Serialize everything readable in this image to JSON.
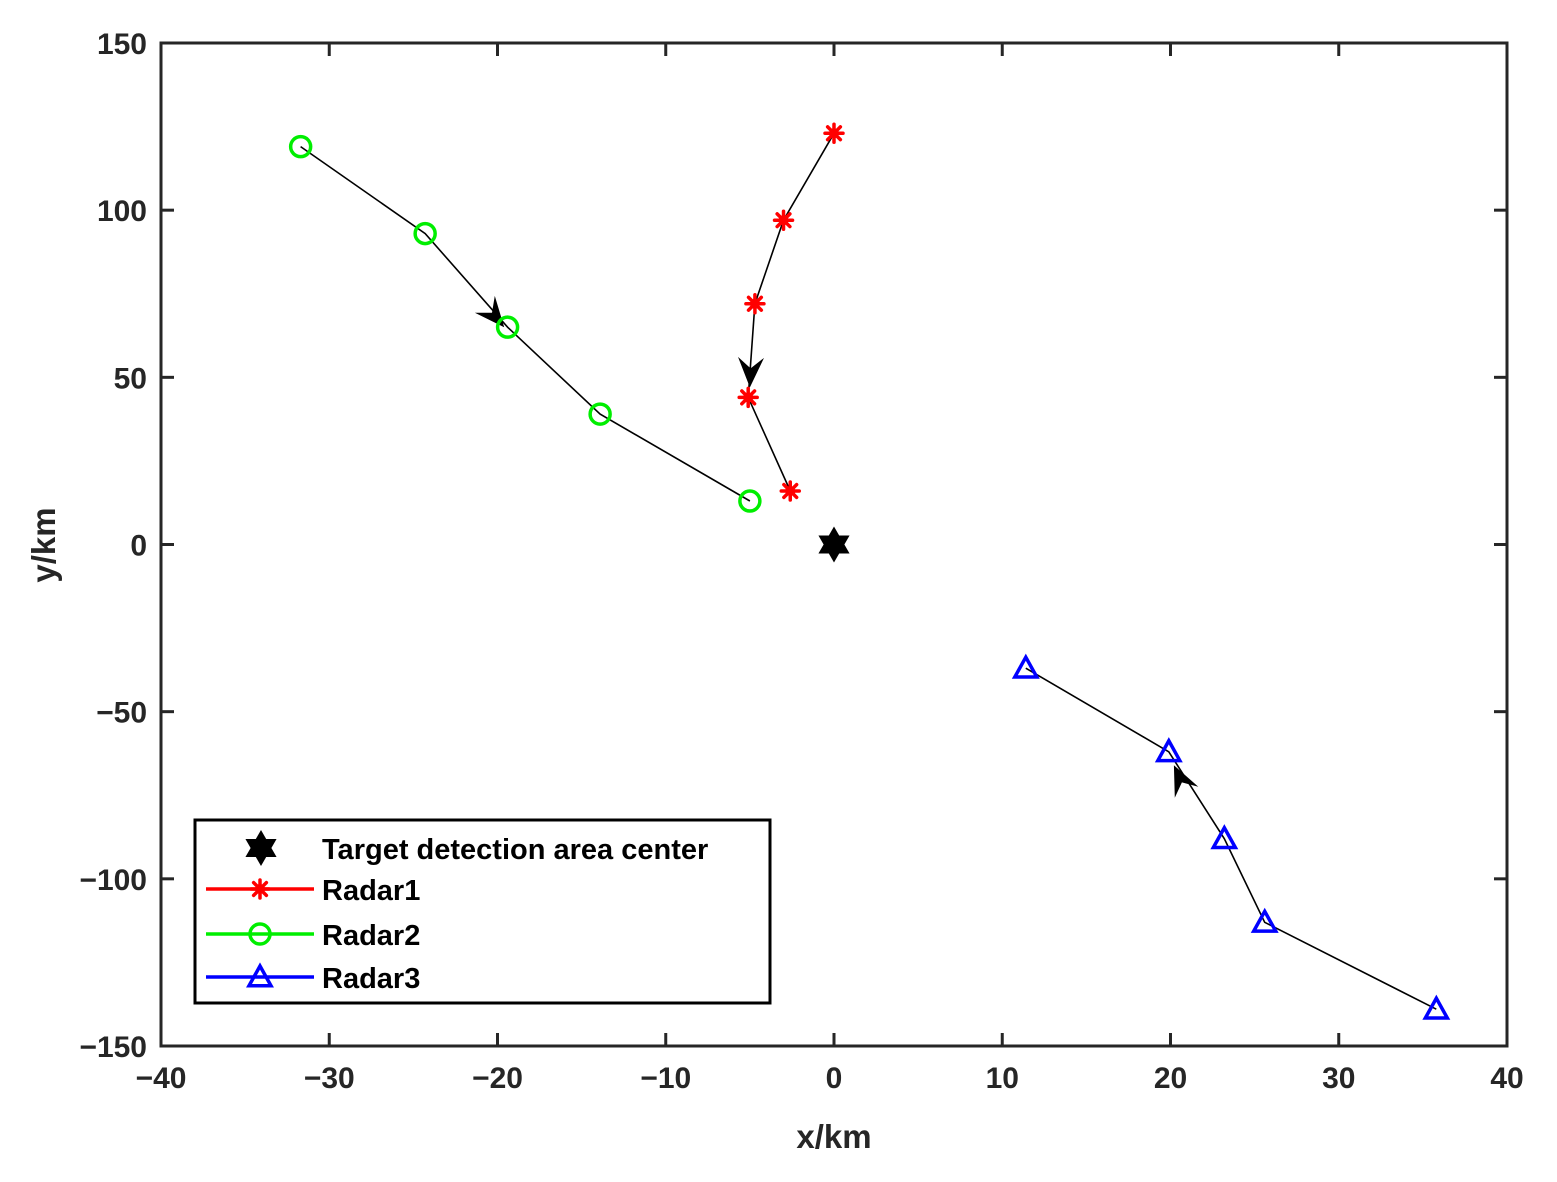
{
  "chart_data": {
    "type": "line",
    "title": "",
    "xlabel": "x/km",
    "ylabel": "y/km",
    "xlim": [
      -40,
      40
    ],
    "ylim": [
      -150,
      150
    ],
    "xticks": [
      -40,
      -30,
      -20,
      -10,
      0,
      10,
      20,
      30,
      40
    ],
    "yticks": [
      -150,
      -100,
      -50,
      0,
      50,
      100,
      150
    ],
    "xtick_labels": [
      "−40",
      "−30",
      "−20",
      "−10",
      "0",
      "10",
      "20",
      "30",
      "40"
    ],
    "ytick_labels": [
      "−150",
      "−100",
      "−50",
      "0",
      "50",
      "100",
      "150"
    ],
    "grid": false,
    "legend_position": "bottom-left",
    "target_center": {
      "name": "Target detection area center",
      "x": 0,
      "y": 0,
      "marker": "hexagram",
      "color": "#000000"
    },
    "series": [
      {
        "name": "Radar1",
        "color": "#ff0000",
        "marker": "asterisk",
        "path_color": "#000000",
        "x": [
          0,
          -3,
          -4.7,
          -5.1,
          -2.6
        ],
        "y": [
          123,
          97,
          72,
          44,
          16
        ]
      },
      {
        "name": "Radar2",
        "color": "#00ee00",
        "marker": "circle",
        "path_color": "#000000",
        "x": [
          -31.7,
          -24.3,
          -19.4,
          -13.9,
          -5
        ],
        "y": [
          119,
          93,
          65,
          39,
          13
        ]
      },
      {
        "name": "Radar3",
        "color": "#0000ff",
        "marker": "triangle",
        "path_color": "#000000",
        "x": [
          11.4,
          19.9,
          23.2,
          25.6,
          35.8
        ],
        "y": [
          -37,
          -62,
          -88,
          -113,
          -139
        ]
      }
    ],
    "arrows": [
      {
        "series": "Radar2",
        "from": [
          -24.3,
          93
        ],
        "to": [
          -19.6,
          65
        ]
      },
      {
        "series": "Radar1",
        "from": [
          -4.9,
          60
        ],
        "to": [
          -5,
          47
        ]
      },
      {
        "series": "Radar3",
        "from": [
          21.5,
          -80
        ],
        "to": [
          20.2,
          -66
        ]
      }
    ]
  }
}
